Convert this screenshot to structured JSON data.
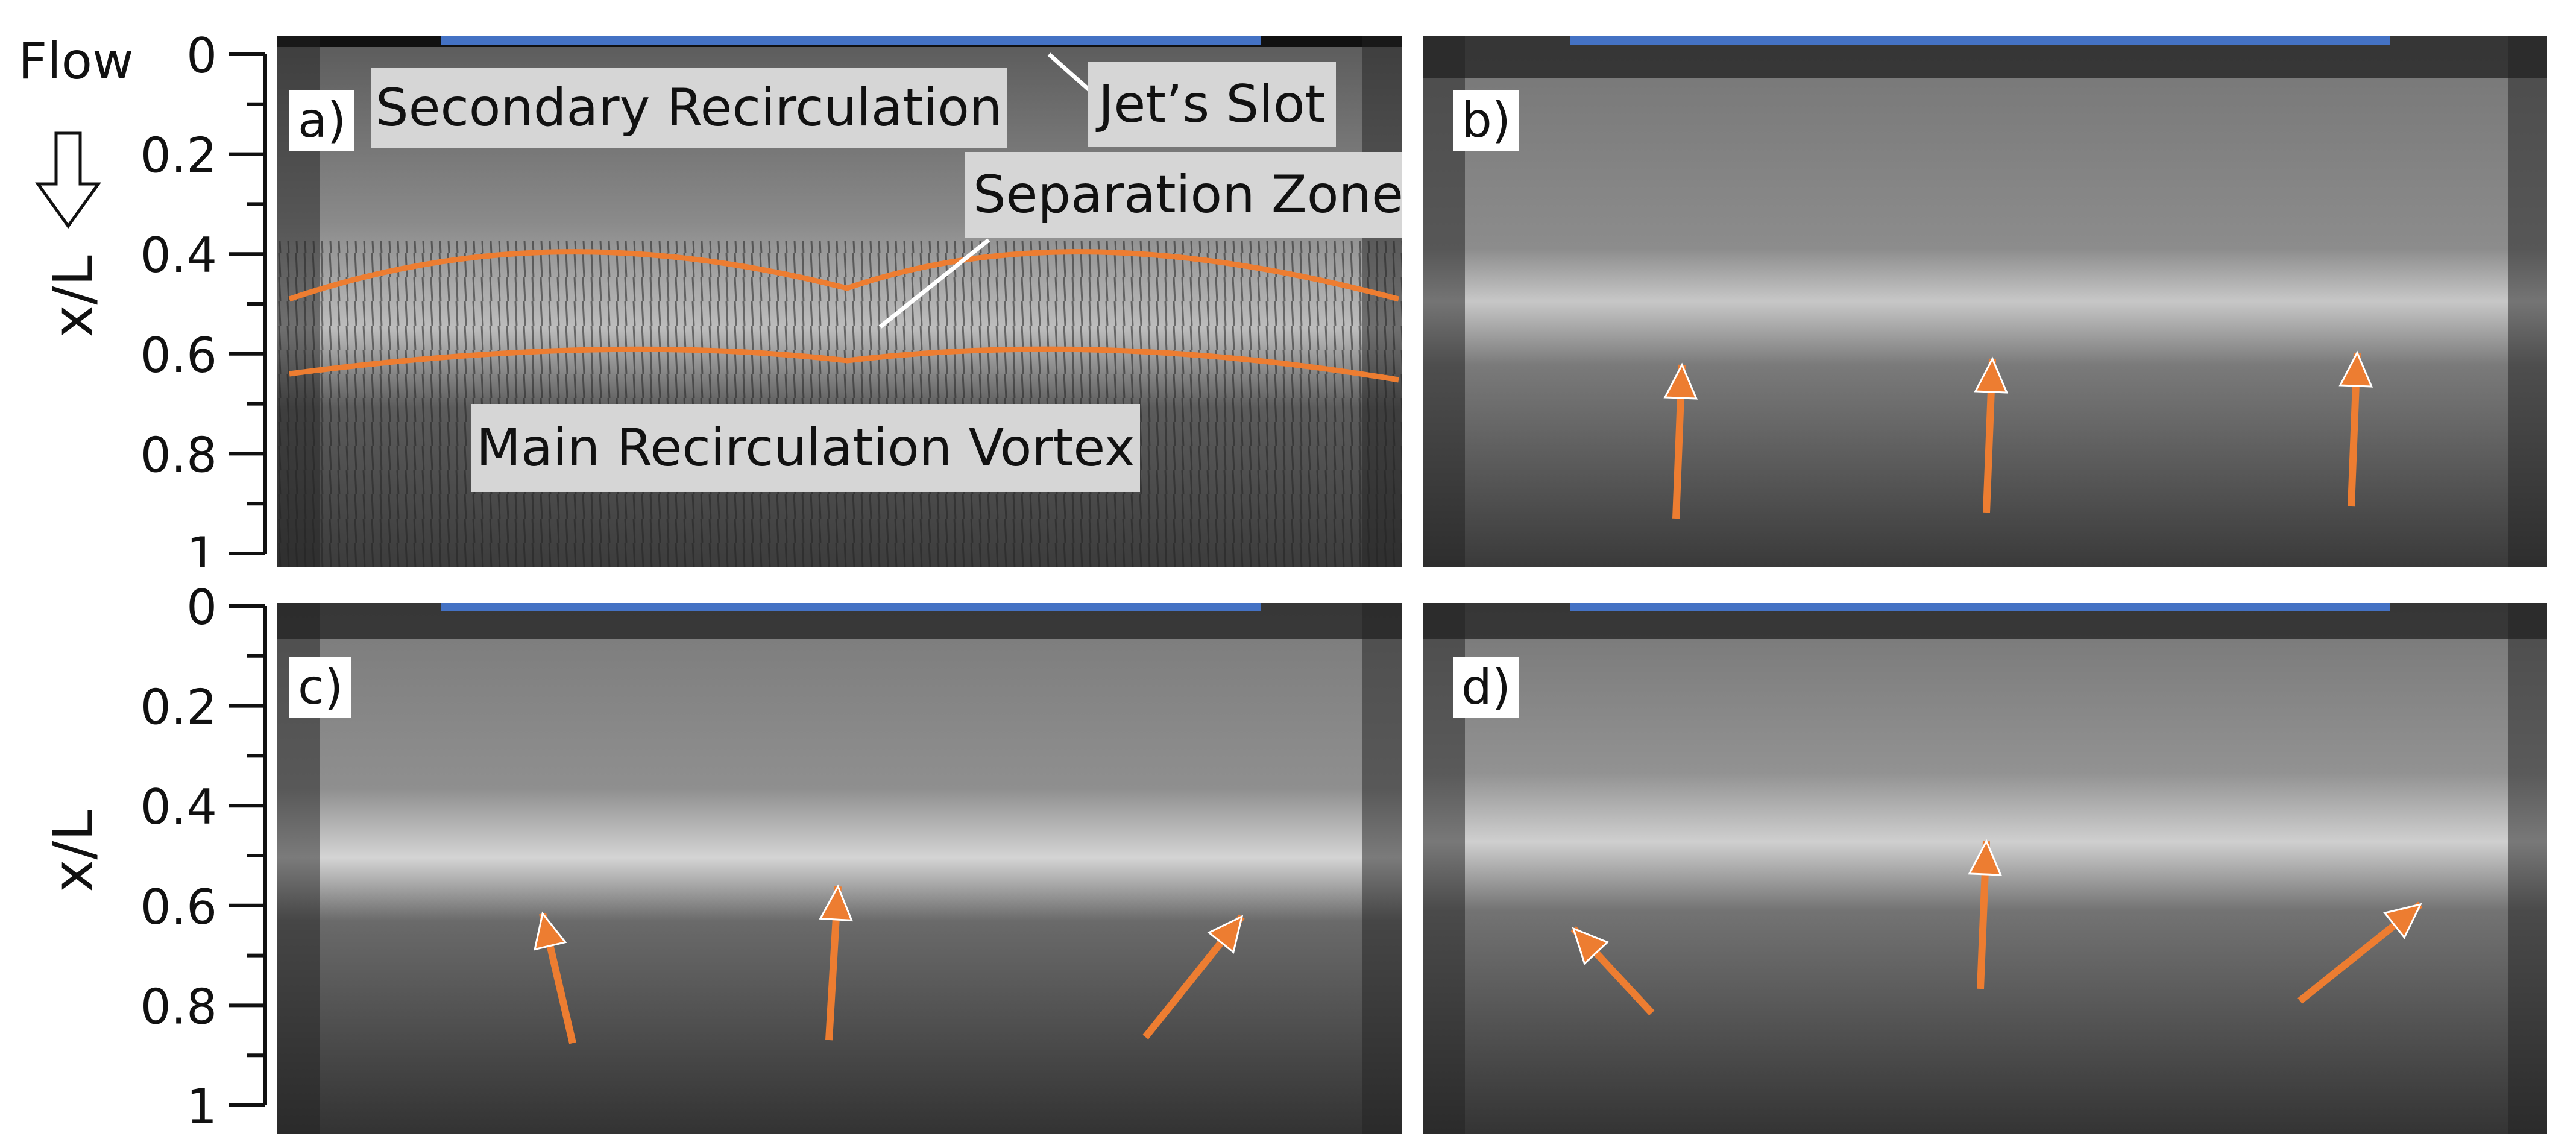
{
  "figure": {
    "flow_label": "Flow",
    "axis_title": "x/L",
    "tick_labels": [
      "0",
      "0.2",
      "0.4",
      "0.6",
      "0.8",
      "1"
    ],
    "panels": [
      {
        "id": "a",
        "tag": "a)",
        "annotations": {
          "secondary": "Secondary Recirculation",
          "slot": "Jet’s Slot",
          "separation": "Separation Zone",
          "main": "Main Recirculation Vortex"
        }
      },
      {
        "id": "b",
        "tag": "b)"
      },
      {
        "id": "c",
        "tag": "c)"
      },
      {
        "id": "d",
        "tag": "d)"
      }
    ],
    "colors": {
      "slot_bar": "#4472c4",
      "arrow": "#ed7d31",
      "separation_lines": "#ed7d31",
      "label_box": "#d6d6d6"
    }
  }
}
